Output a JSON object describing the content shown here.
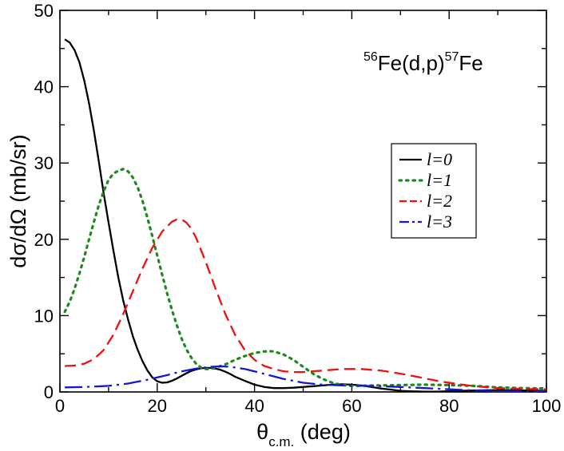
{
  "chart_data": {
    "type": "line",
    "title": "",
    "annotation": {
      "pre_sup": "56",
      "pre": "Fe(d,p)",
      "post_sup": "57",
      "post": "Fe"
    },
    "xlabel": {
      "main": "θ",
      "sub": "c.m.",
      "rest": " (deg)"
    },
    "ylabel": "dσ/dΩ (mb/sr)",
    "xlim": [
      0,
      100
    ],
    "ylim": [
      0,
      50
    ],
    "xticks": [
      0,
      20,
      40,
      60,
      80,
      100
    ],
    "yticks": [
      0,
      10,
      20,
      30,
      40,
      50
    ],
    "grid": false,
    "legend_position": "right-middle",
    "series": [
      {
        "name": "l=0",
        "color": "#000000",
        "style": "solid",
        "points": [
          [
            1,
            46.2
          ],
          [
            2,
            45.8
          ],
          [
            3,
            44.8
          ],
          [
            4,
            43.2
          ],
          [
            5,
            40.8
          ],
          [
            6,
            37.8
          ],
          [
            7,
            34.2
          ],
          [
            8,
            30.2
          ],
          [
            9,
            26.0
          ],
          [
            10,
            22.2
          ],
          [
            11,
            18.5
          ],
          [
            12,
            15.0
          ],
          [
            13,
            12.0
          ],
          [
            14,
            9.5
          ],
          [
            15,
            7.3
          ],
          [
            16,
            5.5
          ],
          [
            17,
            4.0
          ],
          [
            18,
            2.8
          ],
          [
            19,
            1.9
          ],
          [
            20,
            1.4
          ],
          [
            21,
            1.2
          ],
          [
            22,
            1.25
          ],
          [
            23,
            1.45
          ],
          [
            24,
            1.75
          ],
          [
            25,
            2.1
          ],
          [
            26,
            2.45
          ],
          [
            27,
            2.75
          ],
          [
            28,
            2.95
          ],
          [
            29,
            3.1
          ],
          [
            30,
            3.15
          ],
          [
            31,
            3.15
          ],
          [
            32,
            3.05
          ],
          [
            33,
            2.9
          ],
          [
            34,
            2.65
          ],
          [
            35,
            2.35
          ],
          [
            36,
            2.0
          ],
          [
            38,
            1.45
          ],
          [
            40,
            0.95
          ],
          [
            42,
            0.65
          ],
          [
            44,
            0.5
          ],
          [
            46,
            0.5
          ],
          [
            48,
            0.55
          ],
          [
            50,
            0.65
          ],
          [
            52,
            0.75
          ],
          [
            54,
            0.85
          ],
          [
            56,
            0.95
          ],
          [
            58,
            1.0
          ],
          [
            60,
            0.95
          ],
          [
            62,
            0.85
          ],
          [
            64,
            0.65
          ],
          [
            66,
            0.45
          ],
          [
            68,
            0.3
          ],
          [
            70,
            0.15
          ],
          [
            72,
            0.08
          ],
          [
            75,
            0.03
          ],
          [
            78,
            0.05
          ],
          [
            80,
            0.1
          ],
          [
            85,
            0.2
          ],
          [
            90,
            0.25
          ],
          [
            95,
            0.2
          ],
          [
            100,
            0.15
          ]
        ]
      },
      {
        "name": "l=1",
        "color": "#1e8a1e",
        "style": "dotted",
        "points": [
          [
            1,
            10.5
          ],
          [
            2,
            11.8
          ],
          [
            3,
            13.5
          ],
          [
            4,
            15.5
          ],
          [
            5,
            17.7
          ],
          [
            6,
            20.0
          ],
          [
            7,
            22.3
          ],
          [
            8,
            24.5
          ],
          [
            9,
            26.3
          ],
          [
            10,
            27.8
          ],
          [
            11,
            28.6
          ],
          [
            12,
            29.0
          ],
          [
            13,
            29.2
          ],
          [
            14,
            28.9
          ],
          [
            15,
            28.1
          ],
          [
            16,
            26.8
          ],
          [
            17,
            25.0
          ],
          [
            18,
            22.8
          ],
          [
            19,
            20.4
          ],
          [
            20,
            17.9
          ],
          [
            21,
            15.4
          ],
          [
            22,
            13.0
          ],
          [
            23,
            10.8
          ],
          [
            24,
            8.8
          ],
          [
            25,
            7.0
          ],
          [
            26,
            5.6
          ],
          [
            27,
            4.5
          ],
          [
            28,
            3.7
          ],
          [
            29,
            3.2
          ],
          [
            30,
            3.0
          ],
          [
            31,
            3.0
          ],
          [
            32,
            3.2
          ],
          [
            34,
            3.6
          ],
          [
            36,
            4.2
          ],
          [
            38,
            4.7
          ],
          [
            40,
            5.1
          ],
          [
            42,
            5.3
          ],
          [
            43,
            5.35
          ],
          [
            44,
            5.3
          ],
          [
            46,
            4.9
          ],
          [
            48,
            4.2
          ],
          [
            50,
            3.3
          ],
          [
            52,
            2.4
          ],
          [
            54,
            1.7
          ],
          [
            56,
            1.2
          ],
          [
            58,
            0.9
          ],
          [
            60,
            0.8
          ],
          [
            65,
            0.85
          ],
          [
            70,
            0.9
          ],
          [
            75,
            0.95
          ],
          [
            80,
            0.9
          ],
          [
            85,
            0.8
          ],
          [
            90,
            0.6
          ],
          [
            95,
            0.5
          ],
          [
            100,
            0.45
          ]
        ]
      },
      {
        "name": "l=2",
        "color": "#ee1111",
        "style": "dashed",
        "points": [
          [
            1,
            3.4
          ],
          [
            3,
            3.45
          ],
          [
            5,
            3.7
          ],
          [
            7,
            4.3
          ],
          [
            9,
            5.5
          ],
          [
            11,
            7.5
          ],
          [
            13,
            10.2
          ],
          [
            15,
            13.2
          ],
          [
            17,
            16.2
          ],
          [
            19,
            18.9
          ],
          [
            21,
            21.0
          ],
          [
            23,
            22.3
          ],
          [
            24,
            22.6
          ],
          [
            25,
            22.6
          ],
          [
            26,
            22.2
          ],
          [
            27,
            21.4
          ],
          [
            28,
            20.2
          ],
          [
            30,
            17.0
          ],
          [
            32,
            13.5
          ],
          [
            34,
            10.2
          ],
          [
            36,
            7.5
          ],
          [
            38,
            5.5
          ],
          [
            40,
            4.2
          ],
          [
            42,
            3.4
          ],
          [
            44,
            3.0
          ],
          [
            46,
            2.7
          ],
          [
            48,
            2.6
          ],
          [
            50,
            2.6
          ],
          [
            52,
            2.7
          ],
          [
            54,
            2.8
          ],
          [
            56,
            2.9
          ],
          [
            58,
            3.0
          ],
          [
            60,
            3.0
          ],
          [
            62,
            3.0
          ],
          [
            64,
            2.9
          ],
          [
            66,
            2.8
          ],
          [
            68,
            2.6
          ],
          [
            70,
            2.4
          ],
          [
            72,
            2.15
          ],
          [
            74,
            1.9
          ],
          [
            76,
            1.65
          ],
          [
            78,
            1.4
          ],
          [
            80,
            1.2
          ],
          [
            84,
            0.85
          ],
          [
            88,
            0.6
          ],
          [
            92,
            0.45
          ],
          [
            96,
            0.38
          ],
          [
            100,
            0.35
          ]
        ]
      },
      {
        "name": "l=3",
        "color": "#1515d8",
        "style": "dashdot",
        "points": [
          [
            1,
            0.6
          ],
          [
            5,
            0.65
          ],
          [
            10,
            0.8
          ],
          [
            14,
            1.1
          ],
          [
            18,
            1.6
          ],
          [
            22,
            2.2
          ],
          [
            25,
            2.7
          ],
          [
            28,
            3.05
          ],
          [
            31,
            3.3
          ],
          [
            33,
            3.35
          ],
          [
            35,
            3.3
          ],
          [
            38,
            3.0
          ],
          [
            40,
            2.7
          ],
          [
            43,
            2.2
          ],
          [
            46,
            1.7
          ],
          [
            50,
            1.2
          ],
          [
            54,
            0.95
          ],
          [
            58,
            0.85
          ],
          [
            62,
            0.8
          ],
          [
            66,
            0.75
          ],
          [
            70,
            0.65
          ],
          [
            75,
            0.5
          ],
          [
            80,
            0.35
          ],
          [
            85,
            0.2
          ],
          [
            90,
            0.12
          ],
          [
            95,
            0.08
          ],
          [
            100,
            0.06
          ]
        ]
      }
    ]
  }
}
